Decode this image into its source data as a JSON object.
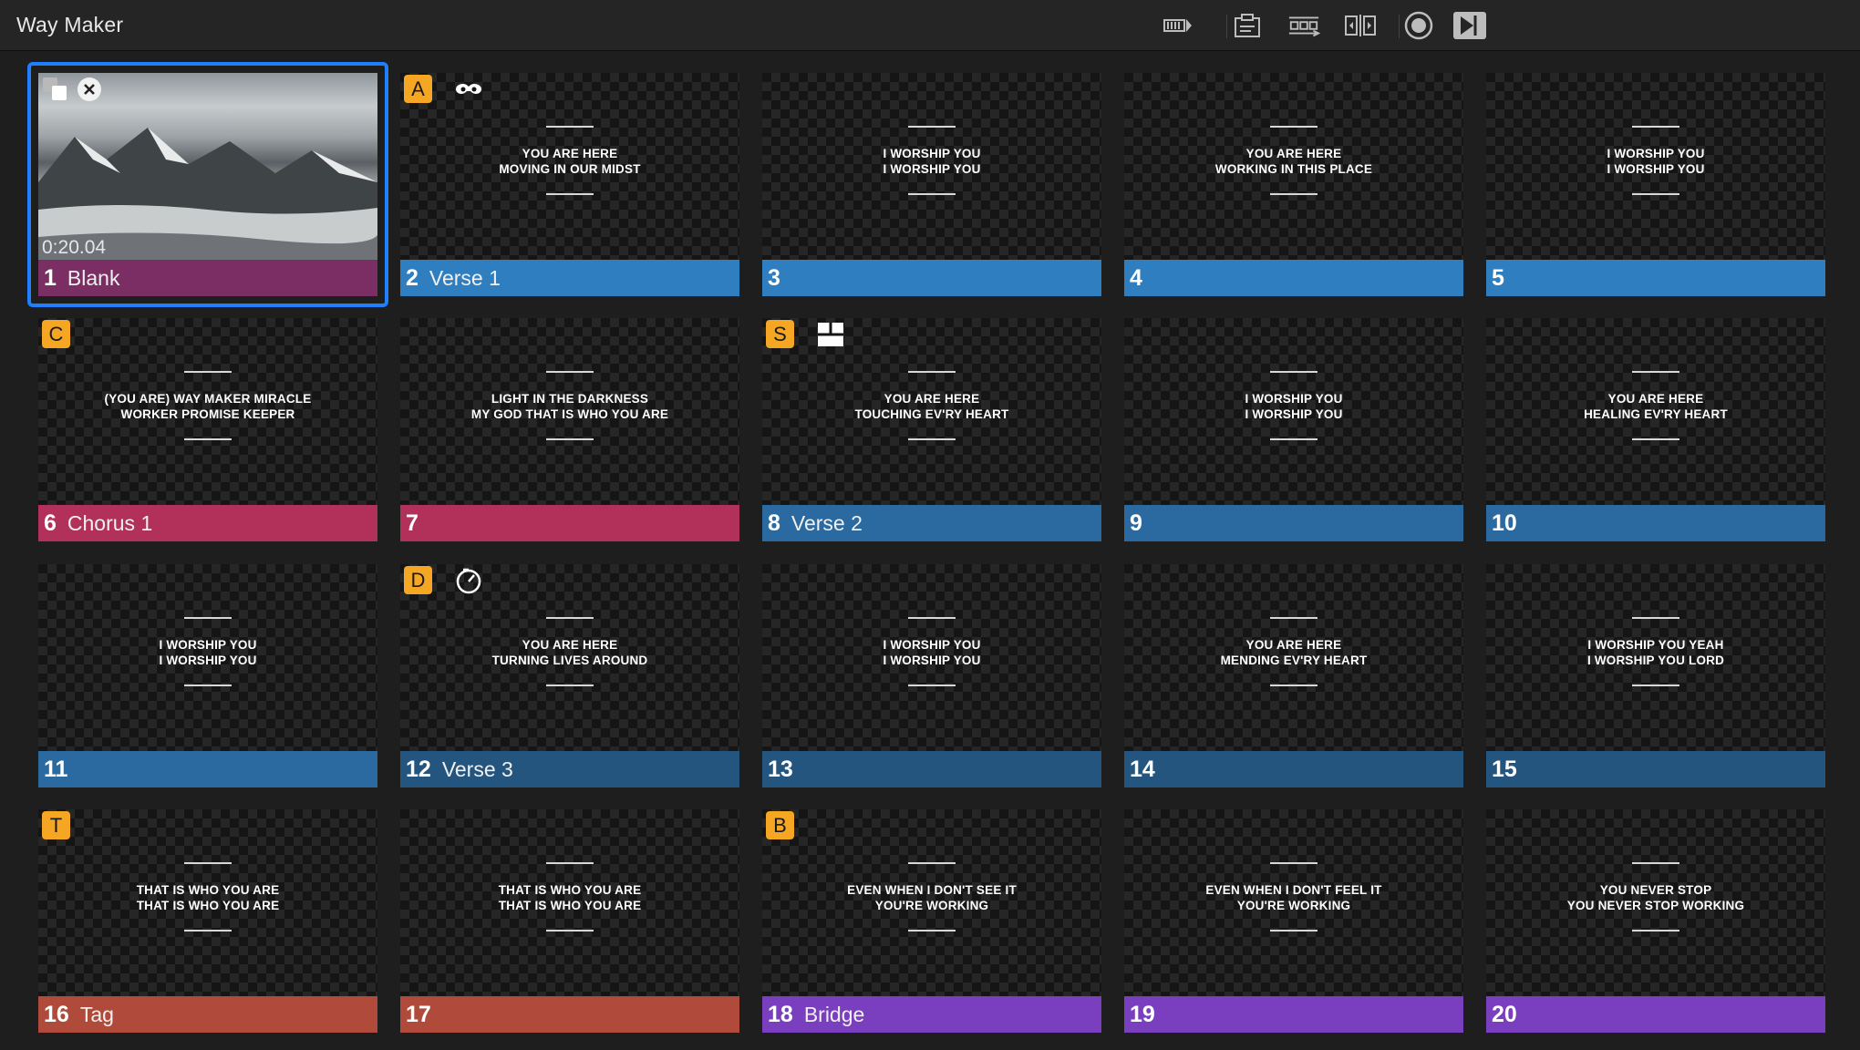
{
  "window": {
    "title": "Way Maker"
  },
  "toolbar": {
    "icons": [
      "timeline-icon",
      "clipboard-icon",
      "sequence-icon",
      "split-icon",
      "target-icon",
      "play-forward-icon"
    ]
  },
  "colors": {
    "selection": "#1f7fff",
    "badge": "#f5a623",
    "blank": "#7b2e63",
    "verse1": "#2f7fc0",
    "chorus": "#b2315a",
    "verse2": "#2a6aa0",
    "verse3": "#24557f",
    "tag": "#b04a3a",
    "bridge": "#7a3fbf"
  },
  "slides": [
    {
      "num": "1",
      "name": "Blank",
      "color": "#7b2e63",
      "selected": true,
      "timecode": "0:20.04",
      "l1": "",
      "l2": "",
      "badge": "",
      "icon": ""
    },
    {
      "num": "2",
      "name": "Verse 1",
      "color": "#2f7fc0",
      "l1": "YOU ARE HERE",
      "l2": "MOVING IN OUR MIDST",
      "badge": "A",
      "icon": "mask-icon"
    },
    {
      "num": "3",
      "name": "",
      "color": "#2f7fc0",
      "l1": "I WORSHIP YOU",
      "l2": "I WORSHIP YOU",
      "badge": "",
      "icon": ""
    },
    {
      "num": "4",
      "name": "",
      "color": "#2f7fc0",
      "l1": "YOU ARE HERE",
      "l2": "WORKING IN THIS PLACE",
      "badge": "",
      "icon": ""
    },
    {
      "num": "5",
      "name": "",
      "color": "#2f7fc0",
      "l1": "I WORSHIP YOU",
      "l2": "I WORSHIP YOU",
      "badge": "",
      "icon": ""
    },
    {
      "num": "6",
      "name": "Chorus 1",
      "color": "#b2315a",
      "l1": "(YOU ARE) WAY MAKER MIRACLE",
      "l2": "WORKER PROMISE KEEPER",
      "badge": "C",
      "icon": ""
    },
    {
      "num": "7",
      "name": "",
      "color": "#b2315a",
      "l1": "LIGHT IN THE DARKNESS",
      "l2": "MY GOD THAT IS WHO YOU ARE",
      "badge": "",
      "icon": ""
    },
    {
      "num": "8",
      "name": "Verse 2",
      "color": "#2a6aa0",
      "l1": "YOU ARE HERE",
      "l2": "TOUCHING EV'RY HEART",
      "badge": "S",
      "icon": "layout-icon"
    },
    {
      "num": "9",
      "name": "",
      "color": "#2a6aa0",
      "l1": "I WORSHIP YOU",
      "l2": "I WORSHIP YOU",
      "badge": "",
      "icon": ""
    },
    {
      "num": "10",
      "name": "",
      "color": "#2a6aa0",
      "l1": "YOU ARE HERE",
      "l2": "HEALING EV'RY HEART",
      "badge": "",
      "icon": ""
    },
    {
      "num": "11",
      "name": "",
      "color": "#2a6aa0",
      "l1": "I WORSHIP YOU",
      "l2": "I WORSHIP YOU",
      "badge": "",
      "icon": ""
    },
    {
      "num": "12",
      "name": "Verse 3",
      "color": "#24557f",
      "l1": "YOU ARE HERE",
      "l2": "TURNING LIVES AROUND",
      "badge": "D",
      "icon": "timer-icon"
    },
    {
      "num": "13",
      "name": "",
      "color": "#24557f",
      "l1": "I WORSHIP YOU",
      "l2": "I WORSHIP YOU",
      "badge": "",
      "icon": ""
    },
    {
      "num": "14",
      "name": "",
      "color": "#24557f",
      "l1": "YOU ARE HERE",
      "l2": "MENDING EV'RY HEART",
      "badge": "",
      "icon": ""
    },
    {
      "num": "15",
      "name": "",
      "color": "#24557f",
      "l1": "I WORSHIP YOU YEAH",
      "l2": "I WORSHIP YOU LORD",
      "badge": "",
      "icon": ""
    },
    {
      "num": "16",
      "name": "Tag",
      "color": "#b04a3a",
      "l1": "THAT IS WHO YOU ARE",
      "l2": "THAT IS WHO YOU ARE",
      "badge": "T",
      "icon": ""
    },
    {
      "num": "17",
      "name": "",
      "color": "#b04a3a",
      "l1": "THAT IS WHO YOU ARE",
      "l2": "THAT IS WHO YOU ARE",
      "badge": "",
      "icon": ""
    },
    {
      "num": "18",
      "name": "Bridge",
      "color": "#7a3fbf",
      "l1": "EVEN WHEN I DON'T SEE IT",
      "l2": "YOU'RE WORKING",
      "badge": "B",
      "icon": ""
    },
    {
      "num": "19",
      "name": "",
      "color": "#7a3fbf",
      "l1": "EVEN WHEN I DON'T FEEL IT",
      "l2": "YOU'RE WORKING",
      "badge": "",
      "icon": ""
    },
    {
      "num": "20",
      "name": "",
      "color": "#7a3fbf",
      "l1": "YOU NEVER STOP",
      "l2": "YOU NEVER STOP WORKING",
      "badge": "",
      "icon": ""
    }
  ]
}
